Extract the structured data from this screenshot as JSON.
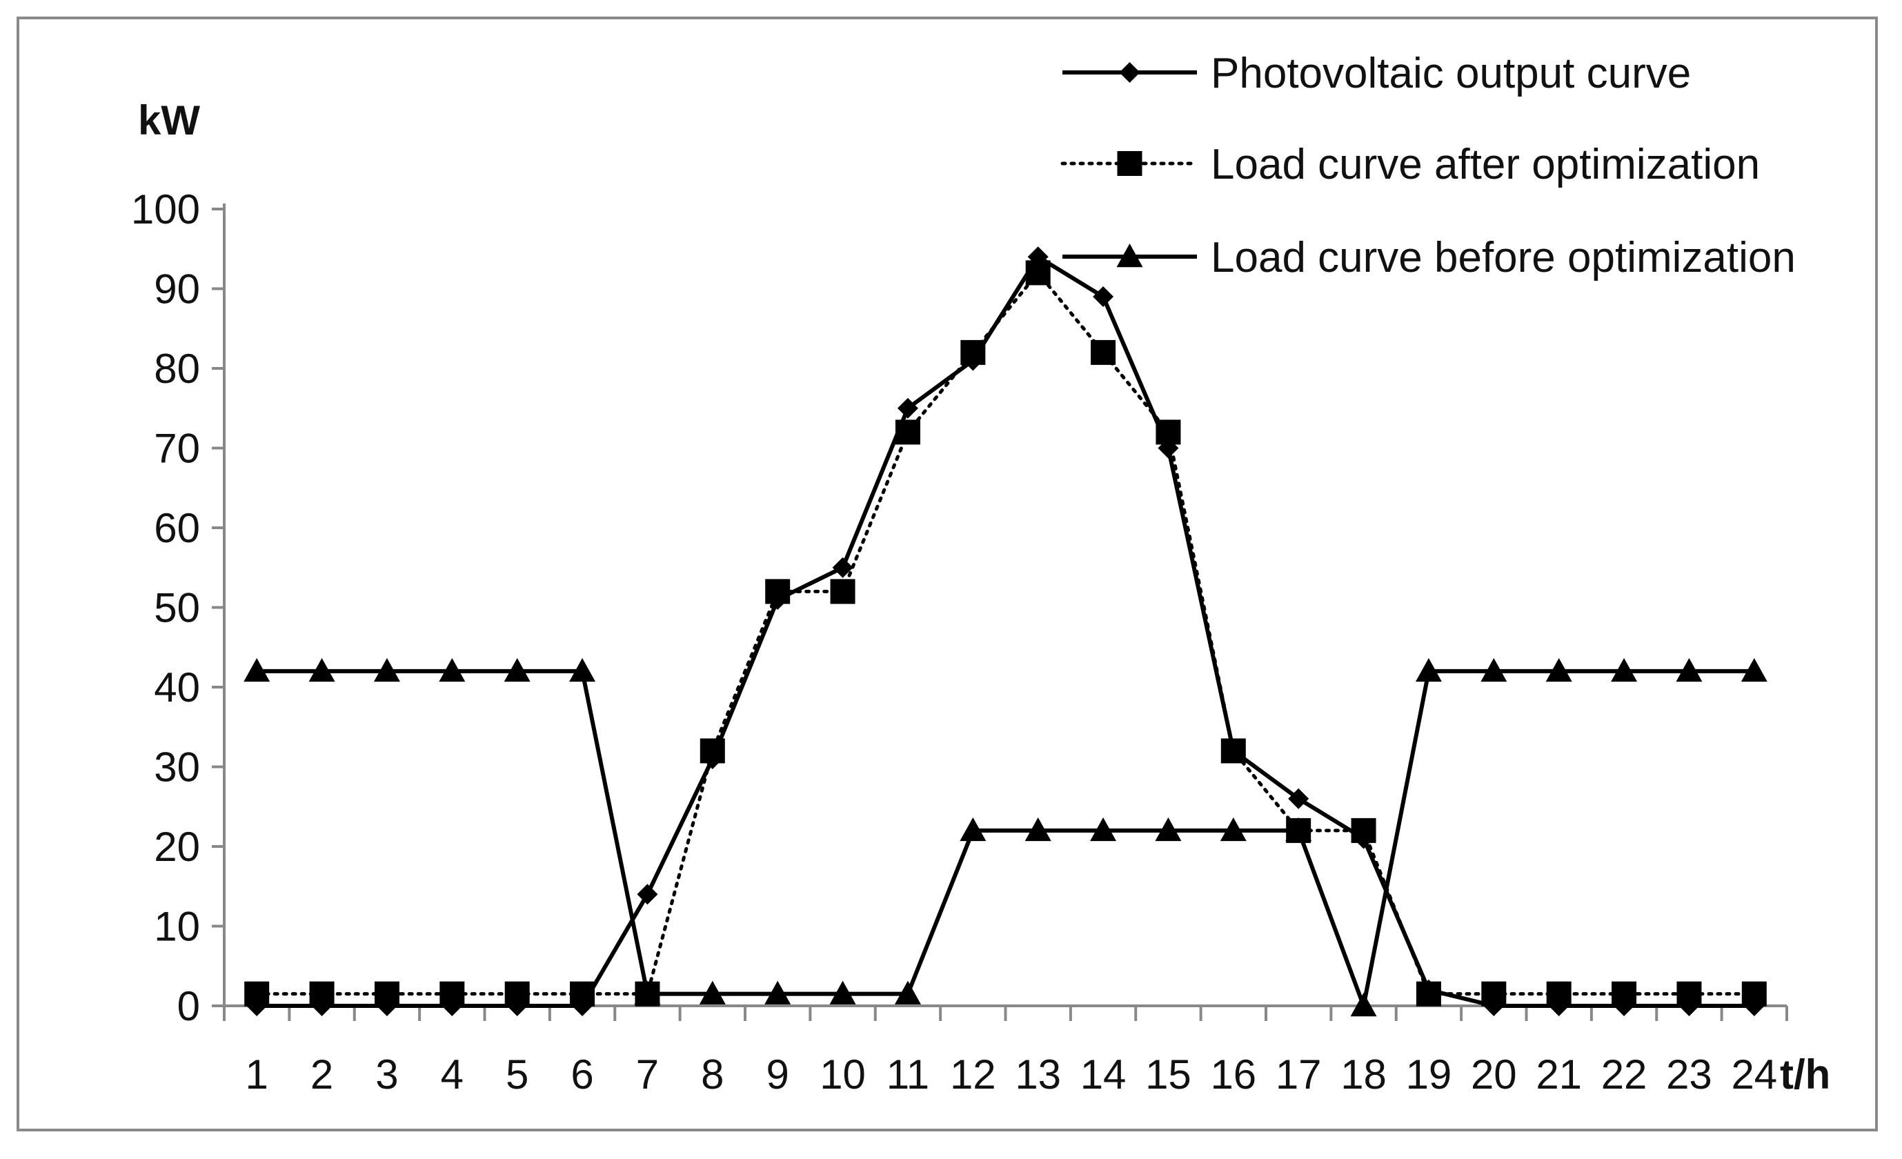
{
  "chart_data": {
    "type": "line",
    "title": "",
    "xlabel": "t/h",
    "ylabel": "kW",
    "categories": [
      "1",
      "2",
      "3",
      "4",
      "5",
      "6",
      "7",
      "8",
      "9",
      "10",
      "11",
      "12",
      "13",
      "14",
      "15",
      "16",
      "17",
      "18",
      "19",
      "20",
      "21",
      "22",
      "23",
      "24"
    ],
    "ylim": [
      0,
      100
    ],
    "yticks": [
      "0",
      "10",
      "20",
      "30",
      "40",
      "50",
      "60",
      "70",
      "80",
      "90",
      "100"
    ],
    "grid": false,
    "legend_position": "top-right",
    "series": [
      {
        "name": "Photovoltaic output curve",
        "marker": "diamond",
        "line": "solid",
        "values": [
          0,
          0,
          0,
          0,
          0,
          0,
          14,
          31,
          51,
          55,
          75,
          81,
          94,
          89,
          70,
          32,
          26,
          21,
          2,
          0,
          0,
          0,
          0,
          0
        ]
      },
      {
        "name": "Load curve after optimization",
        "marker": "square",
        "line": "dotted",
        "values": [
          1.5,
          1.5,
          1.5,
          1.5,
          1.5,
          1.5,
          1.5,
          32,
          52,
          52,
          72,
          82,
          92,
          82,
          72,
          32,
          22,
          22,
          1.5,
          1.5,
          1.5,
          1.5,
          1.5,
          1.5
        ]
      },
      {
        "name": "Load curve before optimization",
        "marker": "triangle",
        "line": "solid",
        "values": [
          42,
          42,
          42,
          42,
          42,
          42,
          1.5,
          1.5,
          1.5,
          1.5,
          1.5,
          22,
          22,
          22,
          22,
          22,
          22,
          0,
          42,
          42,
          42,
          42,
          42,
          42
        ]
      }
    ]
  }
}
